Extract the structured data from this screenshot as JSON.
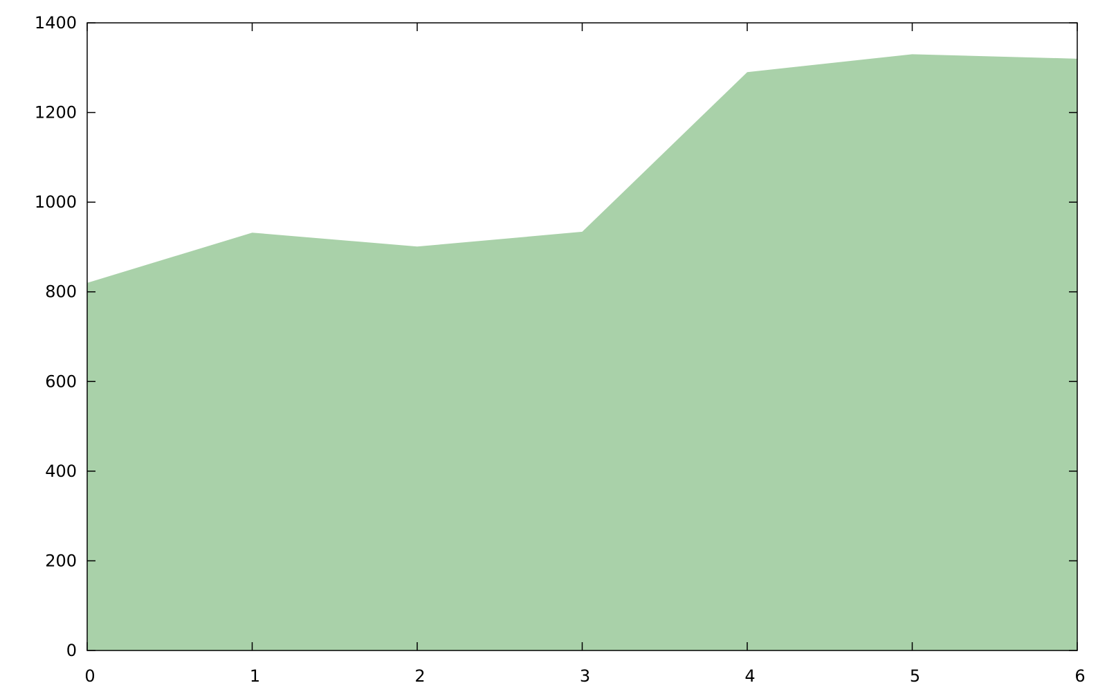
{
  "chart_data": {
    "type": "area",
    "x": [
      0,
      1,
      2,
      3,
      4,
      5,
      6
    ],
    "series": [
      {
        "values": [
          820,
          932,
          901,
          934,
          1290,
          1330,
          1320
        ],
        "color": "#a9d1a9"
      }
    ],
    "xlim": [
      0,
      6
    ],
    "ylim": [
      0,
      1400
    ],
    "x_ticks": [
      0,
      1,
      2,
      3,
      4,
      5,
      6
    ],
    "y_ticks": [
      0,
      200,
      400,
      600,
      800,
      1000,
      1200,
      1400
    ],
    "x_tick_labels": [
      "0",
      "1",
      "2",
      "3",
      "4",
      "5",
      "6"
    ],
    "y_tick_labels": [
      "0",
      "200",
      "400",
      "600",
      "800",
      "1000",
      "1200",
      "1400"
    ],
    "grid": false,
    "legend": "none"
  }
}
